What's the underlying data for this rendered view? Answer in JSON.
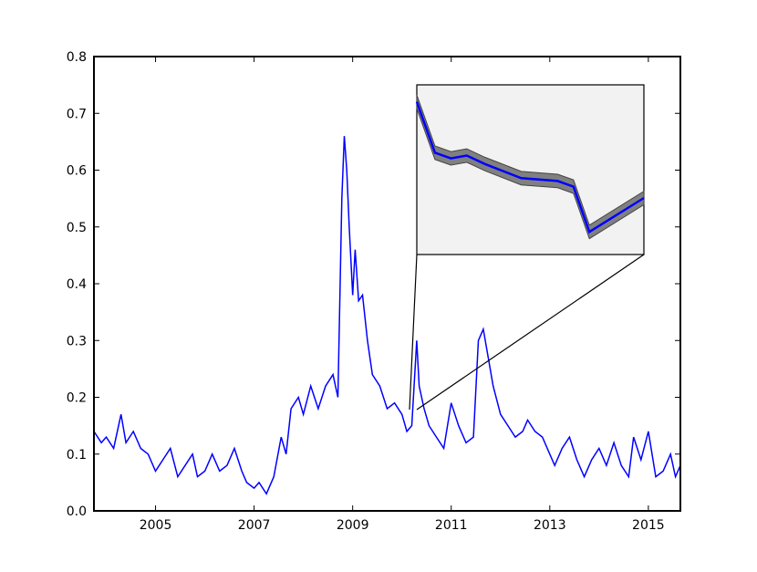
{
  "chart_data": {
    "type": "line",
    "title": "",
    "xlabel": "",
    "ylabel": "",
    "xlim": [
      2003.75,
      2015.65
    ],
    "ylim": [
      0,
      0.8
    ],
    "x_ticks": [
      2005,
      2007,
      2009,
      2011,
      2013,
      2015
    ],
    "x_tick_labels": [
      "2005",
      "2007",
      "2009",
      "2011",
      "2013",
      "2015"
    ],
    "y_ticks": [
      0.0,
      0.1,
      0.2,
      0.3,
      0.4,
      0.5,
      0.6,
      0.7,
      0.8
    ],
    "y_tick_labels": [
      "0.0",
      "0.1",
      "0.2",
      "0.3",
      "0.4",
      "0.5",
      "0.6",
      "0.7",
      "0.8"
    ],
    "grid": false,
    "legend": "none",
    "colors": {
      "line": "#0000ff",
      "inset_band": "#808080",
      "inset_background": "#f2f2f2",
      "axes": "#000000"
    },
    "series": [
      {
        "x": [
          2003.75,
          2003.9,
          2004.0,
          2004.15,
          2004.3,
          2004.4,
          2004.55,
          2004.7,
          2004.85,
          2005.0,
          2005.15,
          2005.3,
          2005.45,
          2005.6,
          2005.75,
          2005.85,
          2006.0,
          2006.15,
          2006.3,
          2006.45,
          2006.6,
          2006.75,
          2006.85,
          2007.0,
          2007.1,
          2007.25,
          2007.4,
          2007.55,
          2007.65,
          2007.75,
          2007.9,
          2008.0,
          2008.15,
          2008.3,
          2008.45,
          2008.6,
          2008.7,
          2008.78,
          2008.83,
          2008.88,
          2008.93,
          2009.0,
          2009.05,
          2009.12,
          2009.2,
          2009.3,
          2009.4,
          2009.55,
          2009.7,
          2009.85,
          2010.0,
          2010.1,
          2010.2,
          2010.3,
          2010.35,
          2010.45,
          2010.55,
          2010.7,
          2010.85,
          2011.0,
          2011.15,
          2011.3,
          2011.45,
          2011.55,
          2011.65,
          2011.75,
          2011.85,
          2012.0,
          2012.15,
          2012.3,
          2012.45,
          2012.55,
          2012.7,
          2012.85,
          2013.0,
          2013.1,
          2013.25,
          2013.4,
          2013.55,
          2013.7,
          2013.85,
          2014.0,
          2014.15,
          2014.3,
          2014.45,
          2014.6,
          2014.7,
          2014.85,
          2015.0,
          2015.15,
          2015.3,
          2015.45,
          2015.55,
          2015.65
        ],
        "y": [
          0.14,
          0.12,
          0.13,
          0.11,
          0.17,
          0.12,
          0.14,
          0.11,
          0.1,
          0.07,
          0.09,
          0.11,
          0.06,
          0.08,
          0.1,
          0.06,
          0.07,
          0.1,
          0.07,
          0.08,
          0.11,
          0.07,
          0.05,
          0.04,
          0.05,
          0.03,
          0.06,
          0.13,
          0.1,
          0.18,
          0.2,
          0.17,
          0.22,
          0.18,
          0.22,
          0.24,
          0.2,
          0.55,
          0.66,
          0.6,
          0.5,
          0.38,
          0.46,
          0.37,
          0.38,
          0.3,
          0.24,
          0.22,
          0.18,
          0.19,
          0.17,
          0.14,
          0.15,
          0.3,
          0.22,
          0.18,
          0.15,
          0.13,
          0.11,
          0.19,
          0.15,
          0.12,
          0.13,
          0.3,
          0.32,
          0.27,
          0.22,
          0.17,
          0.15,
          0.13,
          0.14,
          0.16,
          0.14,
          0.13,
          0.1,
          0.08,
          0.11,
          0.13,
          0.09,
          0.06,
          0.09,
          0.11,
          0.08,
          0.12,
          0.08,
          0.06,
          0.13,
          0.09,
          0.14,
          0.06,
          0.07,
          0.1,
          0.06,
          0.08
        ]
      }
    ],
    "inset": {
      "description_source": "zoomed region",
      "x": [
        0.0,
        0.08,
        0.15,
        0.22,
        0.3,
        0.46,
        0.62,
        0.69,
        0.76,
        1.0
      ],
      "y": [
        0.72,
        0.63,
        0.62,
        0.625,
        0.61,
        0.585,
        0.58,
        0.57,
        0.49,
        0.55
      ]
    }
  }
}
